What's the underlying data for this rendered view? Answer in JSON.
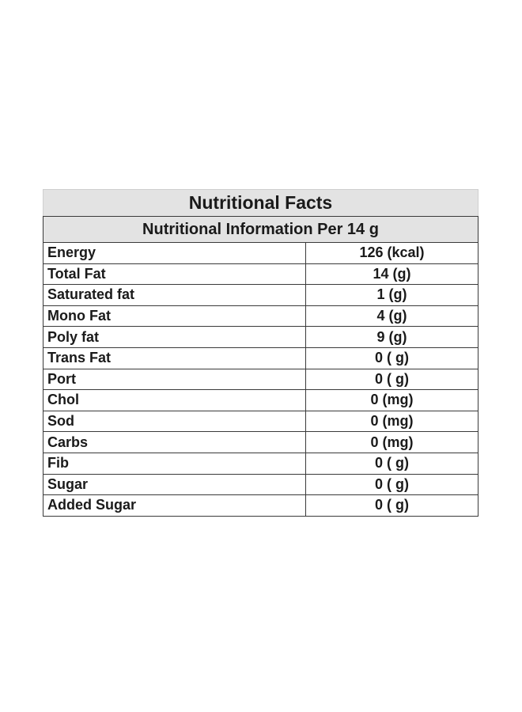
{
  "table": {
    "title": "Nutritional Facts",
    "subtitle": "Nutritional Information Per 14 g",
    "rows": [
      {
        "label": "Energy",
        "value": "126 (kcal)"
      },
      {
        "label": "Total Fat",
        "value": "14 (g)"
      },
      {
        "label": "Saturated fat",
        "value": "1 (g)"
      },
      {
        "label": "Mono Fat",
        "value": "4 (g)"
      },
      {
        "label": "Poly fat",
        "value": "9 (g)"
      },
      {
        "label": "Trans Fat",
        "value": "0 ( g)"
      },
      {
        "label": "Port",
        "value": "0 ( g)"
      },
      {
        "label": "Chol",
        "value": "0 (mg)"
      },
      {
        "label": "Sod",
        "value": "0 (mg)"
      },
      {
        "label": "Carbs",
        "value": "0 (mg)"
      },
      {
        "label": "Fib",
        "value": "0 ( g)"
      },
      {
        "label": "Sugar",
        "value": "0 ( g)"
      },
      {
        "label": "Added Sugar",
        "value": "0 ( g)"
      }
    ]
  },
  "colors": {
    "header_background": "#e3e3e3",
    "border": "#3a3a3a",
    "text": "#1a1a1a"
  }
}
